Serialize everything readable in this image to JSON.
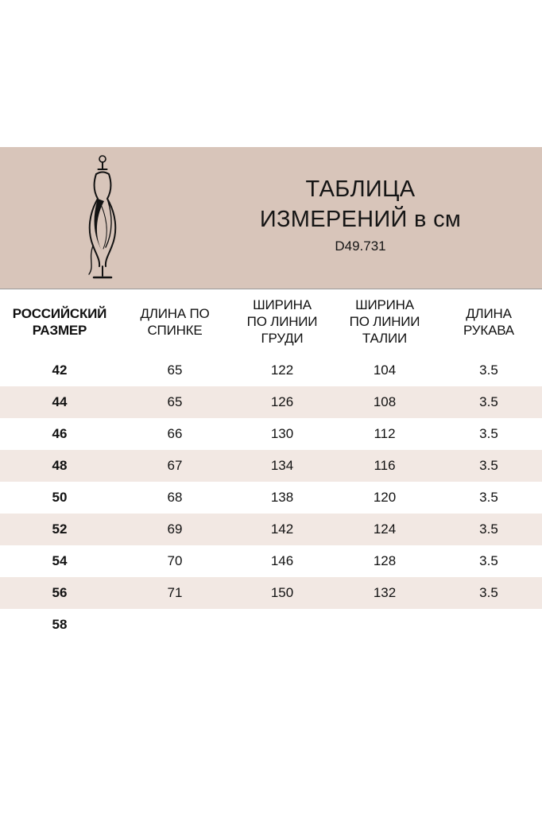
{
  "page": {
    "background": "#ffffff"
  },
  "header": {
    "title_line1": "ТАБЛИЦА",
    "title_line2": "ИЗМЕРЕНИЙ в см",
    "article": "D49.731",
    "background_color": "#d8c5ba",
    "icon": "dress-form-icon"
  },
  "table": {
    "columns": [
      "РОССИЙСКИЙ РАЗМЕР",
      "ДЛИНА ПО СПИНКЕ",
      "ШИРИНА ПО ЛИНИИ ГРУДИ",
      "ШИРИНА ПО ЛИНИИ ТАЛИИ",
      "ДЛИНА РУКАВА"
    ],
    "rows": [
      [
        "42",
        "65",
        "122",
        "104",
        "3.5"
      ],
      [
        "44",
        "65",
        "126",
        "108",
        "3.5"
      ],
      [
        "46",
        "66",
        "130",
        "112",
        "3.5"
      ],
      [
        "48",
        "67",
        "134",
        "116",
        "3.5"
      ],
      [
        "50",
        "68",
        "138",
        "120",
        "3.5"
      ],
      [
        "52",
        "69",
        "142",
        "124",
        "3.5"
      ],
      [
        "54",
        "70",
        "146",
        "128",
        "3.5"
      ],
      [
        "56",
        "71",
        "150",
        "132",
        "3.5"
      ],
      [
        "58",
        "",
        "",
        "",
        ""
      ]
    ],
    "alt_row_color": "#f2e8e3",
    "text_color": "#111111"
  }
}
